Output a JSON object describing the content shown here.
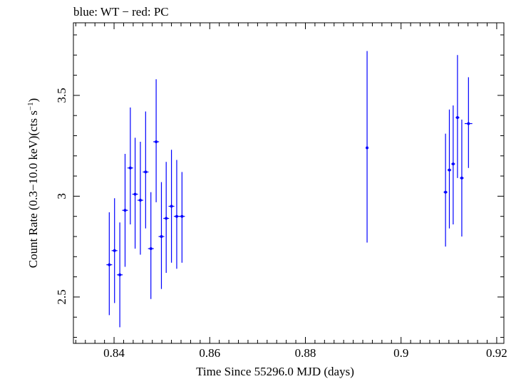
{
  "chart_data": {
    "type": "scatter",
    "title": "blue: WT − red: PC",
    "xlabel": "Time Since 55296.0 MJD (days)",
    "ylabel_main": "Count Rate (0.3−10.0 keV)(cts s",
    "ylabel_sup": "−1",
    "ylabel_close": ")",
    "xlim": [
      0.8315,
      0.9215
    ],
    "ylim": [
      2.27,
      3.86
    ],
    "x_ticks": [
      0.84,
      0.86,
      0.88,
      0.9,
      0.92
    ],
    "x_tick_labels": [
      "0.84",
      "0.86",
      "0.88",
      "0.9",
      "0.92"
    ],
    "y_ticks": [
      2.5,
      3.0,
      3.5
    ],
    "y_tick_labels": [
      "2.5",
      "3",
      "3.5"
    ],
    "series": [
      {
        "color": "#0000ff",
        "points": [
          {
            "x": 0.839,
            "y": 2.66,
            "xerr": 0.0006,
            "ylo": 2.41,
            "yhi": 2.92
          },
          {
            "x": 0.8401,
            "y": 2.73,
            "xerr": 0.0006,
            "ylo": 2.47,
            "yhi": 2.99
          },
          {
            "x": 0.8412,
            "y": 2.61,
            "xerr": 0.0006,
            "ylo": 2.35,
            "yhi": 2.87
          },
          {
            "x": 0.8423,
            "y": 2.93,
            "xerr": 0.0006,
            "ylo": 2.65,
            "yhi": 3.21
          },
          {
            "x": 0.8434,
            "y": 3.14,
            "xerr": 0.0006,
            "ylo": 2.86,
            "yhi": 3.44
          },
          {
            "x": 0.8444,
            "y": 3.01,
            "xerr": 0.0006,
            "ylo": 2.74,
            "yhi": 3.29
          },
          {
            "x": 0.8455,
            "y": 2.98,
            "xerr": 0.0006,
            "ylo": 2.71,
            "yhi": 3.27
          },
          {
            "x": 0.8466,
            "y": 3.12,
            "xerr": 0.0006,
            "ylo": 2.84,
            "yhi": 3.42
          },
          {
            "x": 0.8477,
            "y": 2.74,
            "xerr": 0.0006,
            "ylo": 2.49,
            "yhi": 3.02
          },
          {
            "x": 0.8488,
            "y": 3.27,
            "xerr": 0.0006,
            "ylo": 2.97,
            "yhi": 3.58
          },
          {
            "x": 0.8499,
            "y": 2.8,
            "xerr": 0.0006,
            "ylo": 2.54,
            "yhi": 3.07
          },
          {
            "x": 0.8509,
            "y": 2.89,
            "xerr": 0.0006,
            "ylo": 2.62,
            "yhi": 3.17
          },
          {
            "x": 0.852,
            "y": 2.95,
            "xerr": 0.0006,
            "ylo": 2.67,
            "yhi": 3.23
          },
          {
            "x": 0.8531,
            "y": 2.9,
            "xerr": 0.0006,
            "ylo": 2.64,
            "yhi": 3.18
          },
          {
            "x": 0.8542,
            "y": 2.9,
            "xerr": 0.0006,
            "ylo": 2.67,
            "yhi": 3.12
          },
          {
            "x": 0.8929,
            "y": 3.24,
            "xerr": 0.0002,
            "ylo": 2.77,
            "yhi": 3.72
          },
          {
            "x": 0.9093,
            "y": 3.02,
            "xerr": 0.0004,
            "ylo": 2.75,
            "yhi": 3.31
          },
          {
            "x": 0.9101,
            "y": 3.13,
            "xerr": 0.0004,
            "ylo": 2.84,
            "yhi": 3.43
          },
          {
            "x": 0.9109,
            "y": 3.16,
            "xerr": 0.0004,
            "ylo": 2.86,
            "yhi": 3.45
          },
          {
            "x": 0.9118,
            "y": 3.39,
            "xerr": 0.0004,
            "ylo": 3.09,
            "yhi": 3.7
          },
          {
            "x": 0.9127,
            "y": 3.09,
            "xerr": 0.0004,
            "ylo": 2.8,
            "yhi": 3.38
          },
          {
            "x": 0.9141,
            "y": 3.36,
            "xerr": 0.0008,
            "ylo": 3.14,
            "yhi": 3.59
          }
        ]
      }
    ],
    "grid": false,
    "legend": "none"
  }
}
